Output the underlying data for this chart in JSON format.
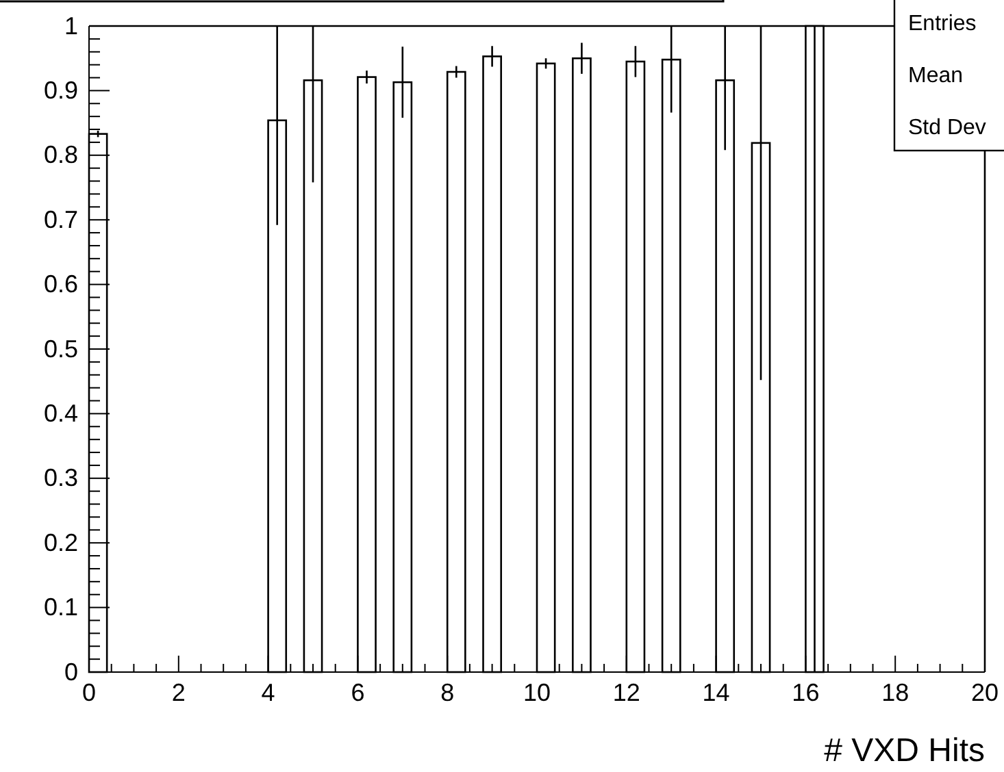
{
  "chart_data": {
    "type": "bar",
    "xlabel": "# VXD Hits",
    "annotations": [
      "Entries",
      "Mean",
      "Std Dev"
    ],
    "x": [
      0.2,
      4.2,
      5.0,
      6.2,
      7.0,
      8.2,
      9.0,
      10.2,
      11.0,
      12.2,
      13.0,
      14.2,
      15.0,
      16.2
    ],
    "values": [
      0.833,
      0.854,
      0.916,
      0.921,
      0.913,
      0.929,
      0.953,
      0.942,
      0.95,
      0.945,
      0.948,
      0.916,
      0.819,
      1
    ],
    "errors": [
      0.005,
      [
        0.692,
        1
      ],
      [
        0.758,
        1
      ],
      0.01,
      0.055,
      0.009,
      0.016,
      0.008,
      0.024,
      0.024,
      [
        0.866,
        1
      ],
      [
        0.808,
        1
      ],
      [
        0.452,
        1
      ],
      [
        0,
        1
      ]
    ],
    "color": "#ffffff",
    "xlim": [
      0,
      20
    ],
    "ylim": [
      0,
      1
    ],
    "xticks": [
      0,
      {
        "value": 0.5,
        "label": null
      },
      {
        "value": 1,
        "label": null
      },
      {
        "value": 1.5,
        "label": null
      },
      2,
      {
        "value": 2.5,
        "label": null
      },
      {
        "value": 3,
        "label": null
      },
      {
        "value": 3.5,
        "label": null
      },
      4,
      {
        "value": 4.5,
        "label": null
      },
      {
        "value": 5,
        "label": null
      },
      {
        "value": 5.5,
        "label": null
      },
      6,
      {
        "value": 6.5,
        "label": null
      },
      {
        "value": 7,
        "label": null
      },
      {
        "value": 7.5,
        "label": null
      },
      8,
      {
        "value": 8.5,
        "label": null
      },
      {
        "value": 9,
        "label": null
      },
      {
        "value": 9.5,
        "label": null
      },
      10,
      {
        "value": 10.5,
        "label": null
      },
      {
        "value": 11,
        "label": null
      },
      {
        "value": 11.5,
        "label": null
      },
      12,
      {
        "value": 12.5,
        "label": null
      },
      {
        "value": 13,
        "label": null
      },
      {
        "value": 13.5,
        "label": null
      },
      14,
      {
        "value": 14.5,
        "label": null
      },
      {
        "value": 15,
        "label": null
      },
      {
        "value": 15.5,
        "label": null
      },
      16,
      {
        "value": 16.5,
        "label": null
      },
      {
        "value": 17,
        "label": null
      },
      {
        "value": 17.5,
        "label": null
      },
      18,
      {
        "value": 18.5,
        "label": null
      },
      {
        "value": 19,
        "label": null
      },
      {
        "value": 19.5,
        "label": null
      },
      20
    ],
    "yticks": [
      0,
      0.1,
      0.2,
      0.3,
      0.4,
      0.5,
      0.6,
      0.7,
      0.8,
      0.9,
      1
    ]
  }
}
